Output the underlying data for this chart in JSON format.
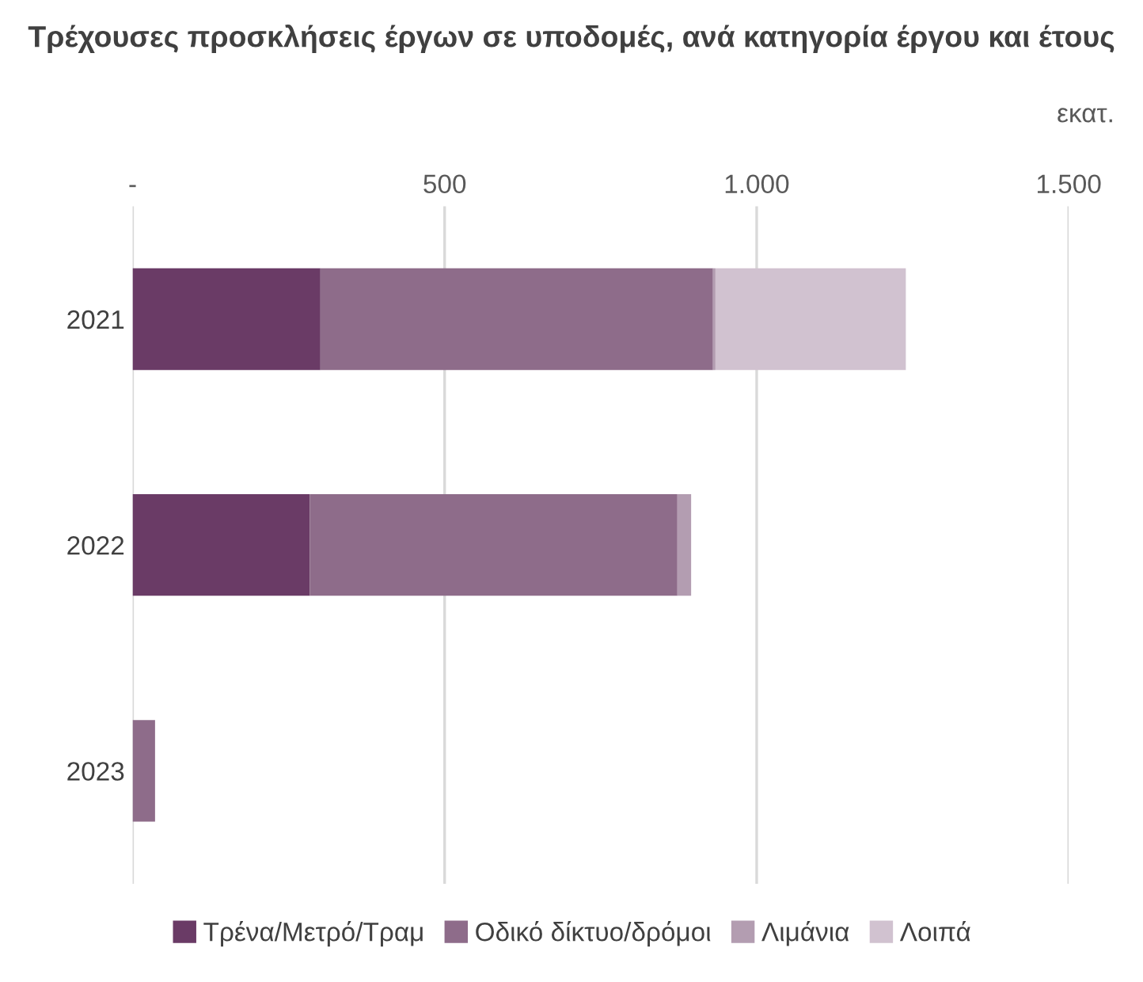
{
  "chart_data": {
    "type": "bar",
    "orientation": "horizontal",
    "stacked": true,
    "title": "Τρέχουσες προσκλήσεις έργων σε υποδομές, ανά κατηγορία έργου και έτους",
    "annotations": [
      "εκατ."
    ],
    "categories": [
      "2021",
      "2022",
      "2023"
    ],
    "series": [
      {
        "name": "Τρένα/Μετρό/Τραμ",
        "color": "#6a3b66",
        "values": [
          301,
          284,
          0
        ]
      },
      {
        "name": "Οδικό δίκτυο/δρόμοι",
        "color": "#8e6c8a",
        "values": [
          629,
          589,
          36
        ]
      },
      {
        "name": "Λιμάνια",
        "color": "#b39db1",
        "values": [
          4,
          22,
          0
        ]
      },
      {
        "name": "Λοιπά",
        "color": "#d1c2d0",
        "values": [
          305,
          0,
          0
        ]
      }
    ],
    "xlim": [
      0,
      1500
    ],
    "xticks": [
      {
        "value": 0,
        "label": "-"
      },
      {
        "value": 500,
        "label": "500"
      },
      {
        "value": 1000,
        "label": "1.000"
      },
      {
        "value": 1500,
        "label": "1.500"
      }
    ],
    "grid": "x",
    "legend": "bottom"
  }
}
